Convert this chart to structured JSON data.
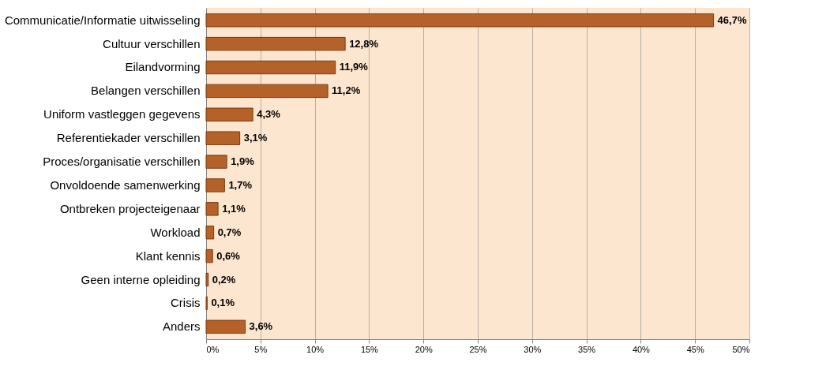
{
  "chart_data": {
    "type": "bar",
    "orientation": "horizontal",
    "categories": [
      "Communicatie/Informatie uitwisseling",
      "Cultuur verschillen",
      "Eilandvorming",
      "Belangen verschillen",
      "Uniform vastleggen gegevens",
      "Referentiekader verschillen",
      "Proces/organisatie verschillen",
      "Onvoldoende samenwerking",
      "Ontbreken projecteigenaar",
      "Workload",
      "Klant kennis",
      "Geen interne opleiding",
      "Crisis",
      "Anders"
    ],
    "values": [
      46.7,
      12.8,
      11.9,
      11.2,
      4.3,
      3.1,
      1.9,
      1.7,
      1.1,
      0.7,
      0.6,
      0.2,
      0.1,
      3.6
    ],
    "value_labels": [
      "46,7%",
      "12,8%",
      "11,9%",
      "11,2%",
      "4,3%",
      "3,1%",
      "1,9%",
      "1,7%",
      "1,1%",
      "0,7%",
      "0,6%",
      "0,2%",
      "0,1%",
      "3,6%"
    ],
    "color": "#b5622a",
    "xlim": [
      0,
      50
    ],
    "xticks": [
      {
        "value": 0,
        "label": "0%"
      },
      {
        "value": 5,
        "label": "5%"
      },
      {
        "value": 10,
        "label": "10%"
      },
      {
        "value": 15,
        "label": "15%"
      },
      {
        "value": 20,
        "label": "20%"
      },
      {
        "value": 25,
        "label": "25%"
      },
      {
        "value": 30,
        "label": "30%"
      },
      {
        "value": 35,
        "label": "35%"
      },
      {
        "value": 40,
        "label": "40%"
      },
      {
        "value": 45,
        "label": "45%"
      },
      {
        "value": 50,
        "label": "50%"
      }
    ],
    "grid": "x"
  }
}
